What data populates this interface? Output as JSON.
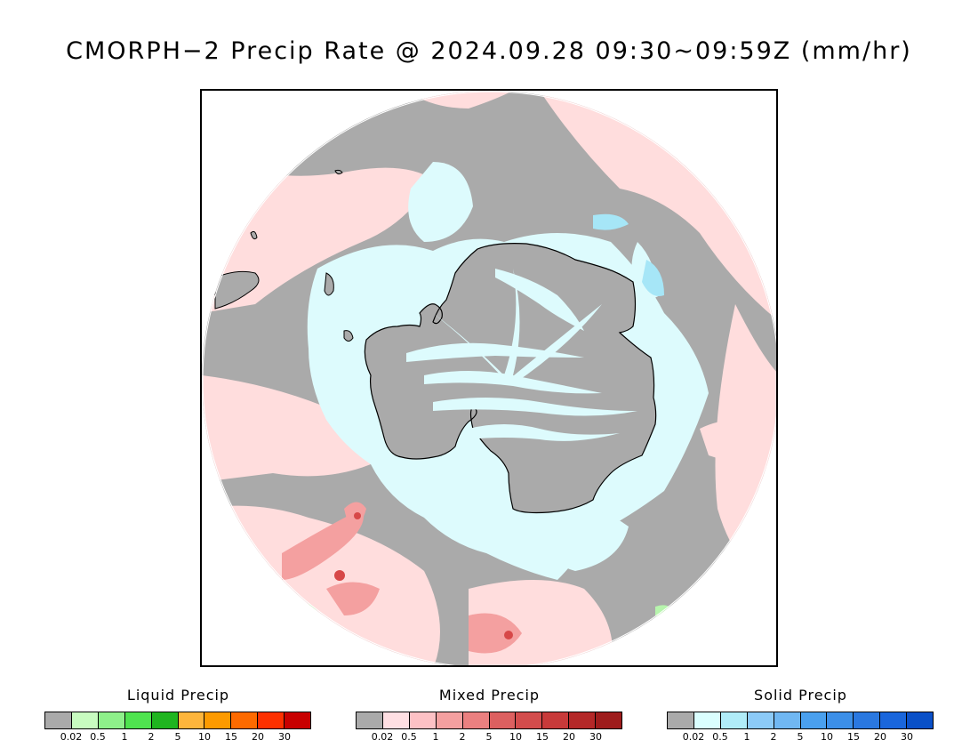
{
  "title": "CMORPH−2 Precip Rate @ 2024.09.28 09:30~09:59Z (mm/hr)",
  "map": {
    "projection": "south-polar-stereographic",
    "colors": {
      "no_precip": "#aaaaaa",
      "mixed_light": "#ffdddd",
      "mixed_moderate": "#f4a0a0",
      "mixed_heavy": "#d74848",
      "solid_light": "#ddfbfd",
      "solid_moderate": "#a6e6f7",
      "liquid_light": "#b7f5ad",
      "liquid_moderate": "#62e35c",
      "coastline": "#000000"
    }
  },
  "legends": [
    {
      "title": "Liquid Precip",
      "colors": [
        "#aaaaaa",
        "#c8fcc0",
        "#8ef08a",
        "#4fe34f",
        "#1fb51f",
        "#fdb53c",
        "#fd9a00",
        "#fd6a00",
        "#fd3000",
        "#c80000"
      ],
      "ticks": [
        "0.02",
        "0.5",
        "1",
        "2",
        "5",
        "10",
        "15",
        "20",
        "30"
      ]
    },
    {
      "title": "Mixed Precip",
      "colors": [
        "#aaaaaa",
        "#ffdfe3",
        "#fdc1c5",
        "#f4a0a0",
        "#eb8080",
        "#dd6060",
        "#d34c4c",
        "#c83a3a",
        "#b42828",
        "#9e1c1c"
      ],
      "ticks": [
        "0.02",
        "0.5",
        "1",
        "2",
        "5",
        "10",
        "15",
        "20",
        "30"
      ]
    },
    {
      "title": "Solid Precip",
      "colors": [
        "#aaaaaa",
        "#dafefe",
        "#b0ecf8",
        "#8ccaf7",
        "#70b7f2",
        "#4aa0ee",
        "#3c8fe8",
        "#2a78e0",
        "#1a66dc",
        "#0a50c8"
      ],
      "ticks": [
        "0.02",
        "0.5",
        "1",
        "2",
        "5",
        "10",
        "15",
        "20",
        "30"
      ]
    }
  ]
}
